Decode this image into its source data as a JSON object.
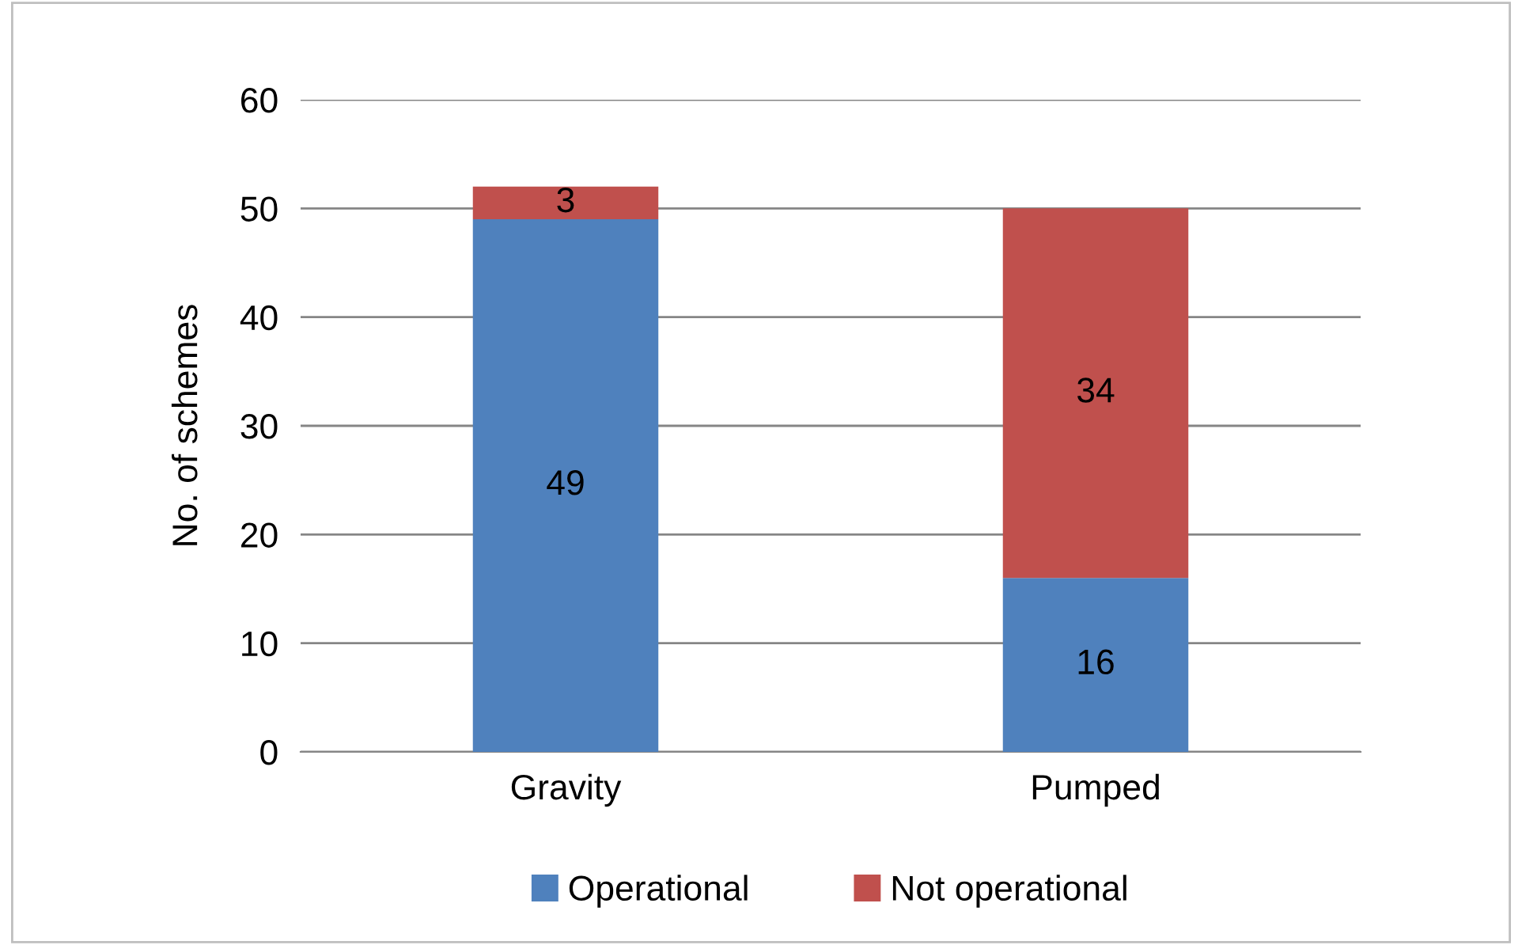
{
  "chart_data": {
    "type": "bar",
    "stacked": true,
    "ylabel": "No. of schemes",
    "categories": [
      "Gravity",
      "Pumped"
    ],
    "series": [
      {
        "name": "Operational",
        "color": "#4f81bd",
        "values": [
          49,
          16
        ]
      },
      {
        "name": "Not operational",
        "color": "#c0504d",
        "values": [
          3,
          34
        ]
      }
    ],
    "ylim": [
      0,
      60
    ],
    "yticks": [
      0,
      10,
      20,
      30,
      40,
      50,
      60
    ],
    "grid": "y",
    "legend": "bottom",
    "data_labels": true
  }
}
